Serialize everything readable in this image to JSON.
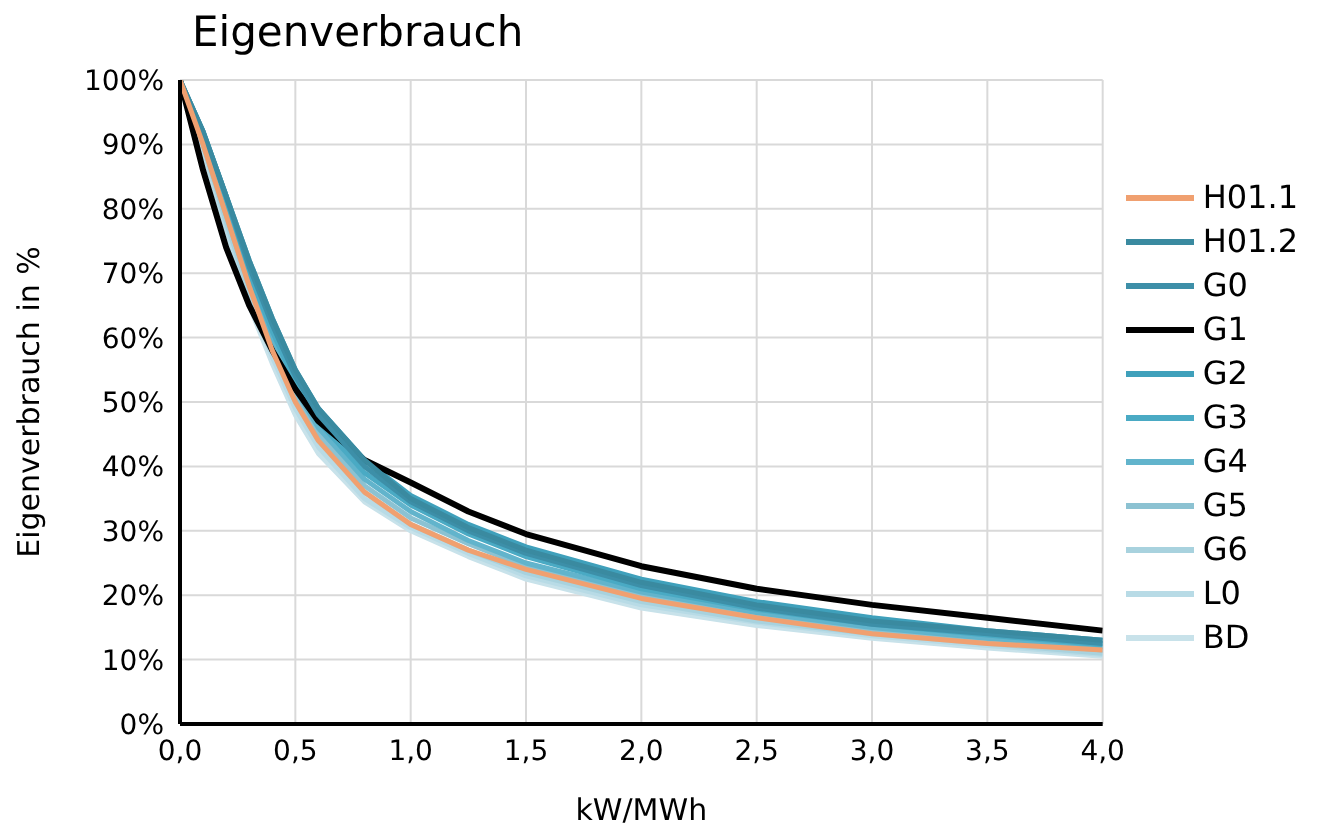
{
  "chart_data": {
    "type": "line",
    "title": "Eigenverbrauch",
    "xlabel": "kW/MWh",
    "ylabel": "Eigenverbrauch in %",
    "x": [
      0,
      0.1,
      0.2,
      0.3,
      0.4,
      0.5,
      0.6,
      0.8,
      1.0,
      1.25,
      1.5,
      2.0,
      2.5,
      3.0,
      3.5,
      4.0
    ],
    "series": [
      {
        "name": "H01.1",
        "color": "#f0a070",
        "values": [
          100,
          90,
          79,
          68,
          58,
          50,
          44,
          36,
          31,
          27,
          24,
          19.5,
          16.5,
          14,
          12.5,
          11.5
        ]
      },
      {
        "name": "H01.2",
        "color": "#3a8aa0",
        "values": [
          100,
          92,
          82,
          72,
          63,
          55,
          49,
          41,
          35,
          30.5,
          27,
          22,
          18.5,
          16,
          14.5,
          13
        ]
      },
      {
        "name": "G0",
        "color": "#3d8fa8",
        "values": [
          100,
          92,
          82,
          71,
          62,
          54,
          48,
          40,
          34.5,
          30,
          26.5,
          21.5,
          18,
          15.5,
          14,
          12.5
        ]
      },
      {
        "name": "G1",
        "color": "#000000",
        "values": [
          100,
          86,
          74,
          65,
          58,
          52,
          47,
          41,
          37.5,
          33,
          29.5,
          24.5,
          21,
          18.5,
          16.5,
          14.5
        ]
      },
      {
        "name": "G2",
        "color": "#3fa0bb",
        "values": [
          100,
          92,
          82,
          72,
          63,
          55,
          49,
          41,
          35.5,
          31,
          27.5,
          22.5,
          19,
          16.5,
          14.5,
          13
        ]
      },
      {
        "name": "G3",
        "color": "#4aaac4",
        "values": [
          100,
          91,
          81,
          70,
          61,
          53,
          47,
          39,
          34,
          29.5,
          26,
          21,
          17.8,
          15.5,
          13.8,
          12.3
        ]
      },
      {
        "name": "G4",
        "color": "#62b4cc",
        "values": [
          100,
          91,
          80,
          69,
          60,
          52,
          46,
          38,
          33,
          28.5,
          25,
          20.5,
          17.3,
          15,
          13.3,
          12
        ]
      },
      {
        "name": "G5",
        "color": "#8cc2d2",
        "values": [
          100,
          90,
          79,
          68,
          59,
          51,
          45,
          37,
          32,
          28,
          24.5,
          20,
          16.8,
          14.5,
          13,
          11.5
        ]
      },
      {
        "name": "G6",
        "color": "#a8d2de",
        "values": [
          100,
          90,
          78,
          67,
          58,
          50,
          44,
          36,
          31,
          27,
          23.5,
          19,
          16,
          14,
          12.5,
          11
        ]
      },
      {
        "name": "L0",
        "color": "#b8dbe6",
        "values": [
          100,
          89,
          77,
          66,
          57,
          49,
          43,
          35,
          30.5,
          26.5,
          23,
          18.5,
          15.8,
          13.7,
          12.2,
          10.8
        ]
      },
      {
        "name": "BD",
        "color": "#c8e2ea",
        "values": [
          100,
          89,
          77,
          65,
          56,
          48,
          42,
          34.5,
          30,
          26,
          22.5,
          18,
          15.3,
          13.3,
          11.8,
          10.5
        ]
      }
    ],
    "xlim": [
      0,
      4
    ],
    "xticks": [
      {
        "value": 0,
        "label": "0,0"
      },
      {
        "value": 0.5,
        "label": "0,5"
      },
      {
        "value": 1,
        "label": "1,0"
      },
      {
        "value": 1.5,
        "label": "1,5"
      },
      {
        "value": 2,
        "label": "2,0"
      },
      {
        "value": 2.5,
        "label": "2,5"
      },
      {
        "value": 3,
        "label": "3,0"
      },
      {
        "value": 3.5,
        "label": "3,5"
      },
      {
        "value": 4,
        "label": "4,0"
      }
    ],
    "ylim": [
      0,
      100
    ],
    "yticks": [
      {
        "value": 0,
        "label": "0%"
      },
      {
        "value": 10,
        "label": "10%"
      },
      {
        "value": 20,
        "label": "20%"
      },
      {
        "value": 30,
        "label": "30%"
      },
      {
        "value": 40,
        "label": "40%"
      },
      {
        "value": 50,
        "label": "50%"
      },
      {
        "value": 60,
        "label": "60%"
      },
      {
        "value": 70,
        "label": "70%"
      },
      {
        "value": 80,
        "label": "80%"
      },
      {
        "value": 90,
        "label": "90%"
      },
      {
        "value": 100,
        "label": "100%"
      }
    ],
    "grid": true,
    "legend": "right",
    "marker": "none",
    "line_style": "solid"
  }
}
